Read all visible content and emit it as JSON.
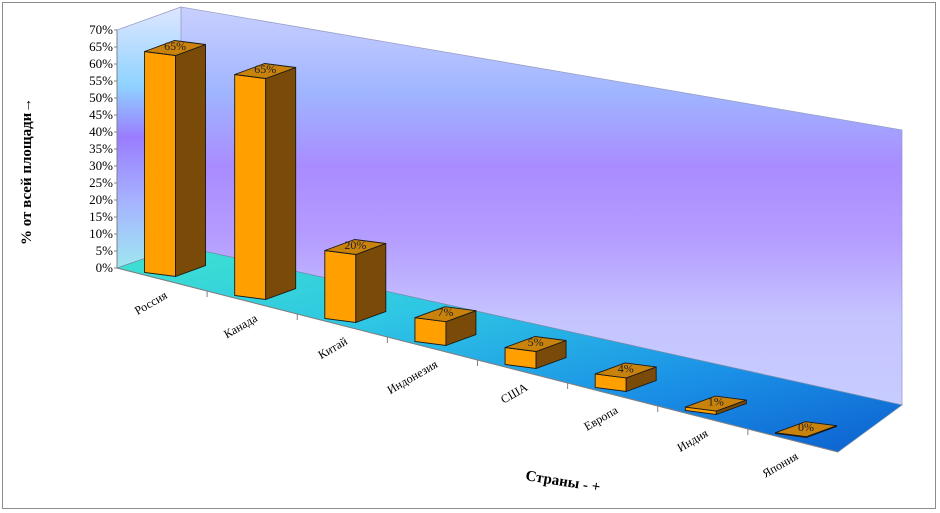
{
  "chart_data": {
    "type": "bar",
    "categories": [
      "Россия",
      "Канада",
      "Китай",
      "Индонезия",
      "США",
      "Европа",
      "Индия",
      "Япония"
    ],
    "series": [
      {
        "values": [
          65,
          65,
          20,
          7,
          5,
          4,
          1,
          0
        ]
      }
    ],
    "data_labels": [
      "65%",
      "65%",
      "20%",
      "7%",
      "5%",
      "4%",
      "1%",
      "0%"
    ],
    "y_ticks": [
      "0%",
      "5%",
      "10%",
      "15%",
      "20%",
      "25%",
      "30%",
      "35%",
      "40%",
      "45%",
      "50%",
      "55%",
      "60%",
      "65%",
      "70%"
    ],
    "ylim": [
      0,
      70
    ],
    "ylabel": "% от всей площади→",
    "xlabel": "Страны - +",
    "bar_front_color": "#ffa000",
    "bar_side_color": "#7a4a08",
    "bar_top_color": "#c9820c",
    "grid": false,
    "style": "3d"
  }
}
